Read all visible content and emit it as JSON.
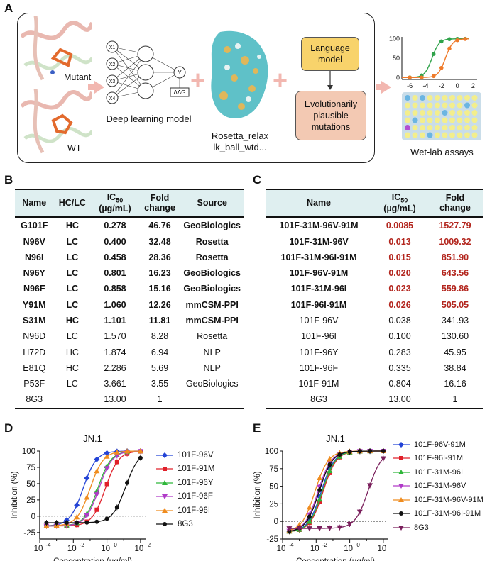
{
  "panel_labels": {
    "a": "A",
    "b": "B",
    "c": "C",
    "d": "D",
    "e": "E"
  },
  "panelA": {
    "mutant_label": "Mutant",
    "wt_label": "WT",
    "nn_inputs": [
      "X1",
      "X2",
      "X3",
      "X4"
    ],
    "nn_output": "Y",
    "ddg_label": "ΔΔG",
    "dl_caption": "Deep learning model",
    "rosetta_caption_1": "Rosetta_relax",
    "rosetta_caption_2": "lk_ball_wtd...",
    "language_model_1": "Language",
    "language_model_2": "model",
    "evo_1": "Evolutionarily",
    "evo_2": "plausible",
    "evo_3": "mutations",
    "wetlab_caption": "Wet-lab assays",
    "mini_chart": {
      "xticks": [
        "-6",
        "-4",
        "-2",
        "0",
        "2"
      ],
      "yticks": [
        "100",
        "50",
        "0"
      ]
    }
  },
  "tableB": {
    "headers": {
      "name": "Name",
      "hclc": "HC/LC",
      "ic50_main": "IC",
      "ic50_sub": "50",
      "ic50_unit": "(µg/mL)",
      "fold1": "Fold",
      "fold2": "change",
      "source": "Source"
    },
    "rows": [
      {
        "name": "G101F",
        "hclc": "HC",
        "ic50": "0.278",
        "fold": "46.76",
        "source": "GeoBiologics",
        "bold": true
      },
      {
        "name": "N96V",
        "hclc": "LC",
        "ic50": "0.400",
        "fold": "32.48",
        "source": "Rosetta",
        "bold": true
      },
      {
        "name": "N96I",
        "hclc": "LC",
        "ic50": "0.458",
        "fold": "28.36",
        "source": "Rosetta",
        "bold": true
      },
      {
        "name": "N96Y",
        "hclc": "LC",
        "ic50": "0.801",
        "fold": "16.23",
        "source": "GeoBiologics",
        "bold": true
      },
      {
        "name": "N96F",
        "hclc": "LC",
        "ic50": "0.858",
        "fold": "15.16",
        "source": "GeoBiologics",
        "bold": true
      },
      {
        "name": "Y91M",
        "hclc": "LC",
        "ic50": "1.060",
        "fold": "12.26",
        "source": "mmCSM-PPI",
        "bold": true
      },
      {
        "name": "S31M",
        "hclc": "HC",
        "ic50": "1.101",
        "fold": "11.81",
        "source": "mmCSM-PPI",
        "bold": true
      },
      {
        "name": "N96D",
        "hclc": "LC",
        "ic50": "1.570",
        "fold": "8.28",
        "source": "Rosetta",
        "bold": false
      },
      {
        "name": "H72D",
        "hclc": "HC",
        "ic50": "1.874",
        "fold": "6.94",
        "source": "NLP",
        "bold": false
      },
      {
        "name": "E81Q",
        "hclc": "HC",
        "ic50": "2.286",
        "fold": "5.69",
        "source": "NLP",
        "bold": false
      },
      {
        "name": "P53F",
        "hclc": "LC",
        "ic50": "3.661",
        "fold": "3.55",
        "source": "GeoBiologics",
        "bold": false
      },
      {
        "name": "8G3",
        "hclc": "",
        "ic50": "13.00",
        "fold": "1",
        "source": "",
        "bold": false
      }
    ]
  },
  "tableC": {
    "headers": {
      "name": "Name",
      "ic50_main": "IC",
      "ic50_sub": "50",
      "ic50_unit": "(µg/mL)",
      "fold1": "Fold",
      "fold2": "change"
    },
    "rows": [
      {
        "name": "101F-31M-96V-91M",
        "ic50": "0.0085",
        "fold": "1527.79",
        "bold": true
      },
      {
        "name": "101F-31M-96V",
        "ic50": "0.013",
        "fold": "1009.32",
        "bold": true
      },
      {
        "name": "101F-31M-96I-91M",
        "ic50": "0.015",
        "fold": "851.90",
        "bold": true
      },
      {
        "name": "101F-96V-91M",
        "ic50": "0.020",
        "fold": "643.56",
        "bold": true
      },
      {
        "name": "101F-31M-96I",
        "ic50": "0.023",
        "fold": "559.86",
        "bold": true
      },
      {
        "name": "101F-96I-91M",
        "ic50": "0.026",
        "fold": "505.05",
        "bold": true
      },
      {
        "name": "101F-96V",
        "ic50": "0.038",
        "fold": "341.93",
        "bold": false
      },
      {
        "name": "101F-96I",
        "ic50": "0.100",
        "fold": "130.60",
        "bold": false
      },
      {
        "name": "101F-96Y",
        "ic50": "0.283",
        "fold": "45.95",
        "bold": false
      },
      {
        "name": "101F-96F",
        "ic50": "0.335",
        "fold": "38.84",
        "bold": false
      },
      {
        "name": "101F-91M",
        "ic50": "0.804",
        "fold": "16.16",
        "bold": false
      },
      {
        "name": "8G3",
        "ic50": "13.00",
        "fold": "1",
        "bold": false
      }
    ]
  },
  "chart_data": [
    {
      "type": "line",
      "title": "JN.1",
      "xlabel": "Concentration (µg/ml)",
      "ylabel": "Inhibition (%)",
      "xscale": "log",
      "xlim": [
        0.0001,
        200
      ],
      "ylim": [
        -35,
        100
      ],
      "xticks": [
        "10",
        "10",
        "10",
        "10"
      ],
      "xtick_exps": [
        "-4",
        "-2",
        "0",
        "2"
      ],
      "yticks": [
        100,
        75,
        50,
        25,
        0,
        -25
      ],
      "legend": "right",
      "series": [
        {
          "name": "101F-96V",
          "color": "#2343d6",
          "marker": "diamond",
          "ic50": 0.038
        },
        {
          "name": "101F-91M",
          "color": "#e0202a",
          "marker": "square",
          "ic50": 0.804
        },
        {
          "name": "101F-96Y",
          "color": "#2fb63a",
          "marker": "triangle-up",
          "ic50": 0.283
        },
        {
          "name": "101F-96F",
          "color": "#b03ac8",
          "marker": "triangle-down",
          "ic50": 0.335
        },
        {
          "name": "101F-96I",
          "color": "#ef8c1f",
          "marker": "triangle-up",
          "ic50": 0.1
        },
        {
          "name": "8G3",
          "color": "#111111",
          "marker": "circle",
          "ic50": 13.0
        }
      ],
      "x": [
        0.00025,
        0.001,
        0.004,
        0.016,
        0.064,
        0.25,
        1,
        4,
        16,
        100
      ]
    },
    {
      "type": "line",
      "title": "JN.1",
      "xlabel": "Concentration (µg/ml)",
      "ylabel": "Inhibition (%)",
      "xscale": "log",
      "xlim": [
        0.0001,
        200
      ],
      "ylim": [
        -25,
        100
      ],
      "xticks": [
        "10",
        "10",
        "10",
        "10"
      ],
      "xtick_exps": [
        "-4",
        "-2",
        "0",
        "2"
      ],
      "yticks": [
        100,
        75,
        50,
        25,
        0,
        -25
      ],
      "legend": "right",
      "series": [
        {
          "name": "101F-96V-91M",
          "color": "#2343d6",
          "marker": "diamond",
          "ic50": 0.02
        },
        {
          "name": "101F-96I-91M",
          "color": "#e0202a",
          "marker": "square",
          "ic50": 0.026
        },
        {
          "name": "101F-31M-96I",
          "color": "#2fb63a",
          "marker": "triangle-up",
          "ic50": 0.023
        },
        {
          "name": "101F-31M-96V",
          "color": "#b03ac8",
          "marker": "triangle-down",
          "ic50": 0.013
        },
        {
          "name": "101F-31M-96V-91M",
          "color": "#ef8c1f",
          "marker": "triangle-up",
          "ic50": 0.0085
        },
        {
          "name": "101F-31M-96I-91M",
          "color": "#111111",
          "marker": "circle",
          "ic50": 0.015
        },
        {
          "name": "8G3",
          "color": "#7a1f5c",
          "marker": "triangle-down",
          "ic50": 13.0
        }
      ],
      "x": [
        0.00025,
        0.001,
        0.004,
        0.016,
        0.064,
        0.25,
        1,
        4,
        16,
        100
      ]
    }
  ]
}
